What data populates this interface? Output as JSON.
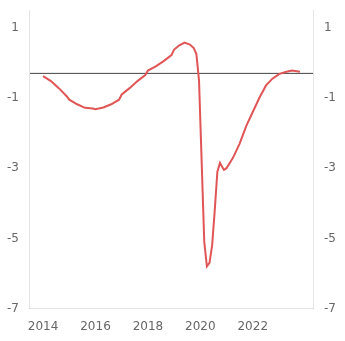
{
  "chart_data": {
    "type": "line",
    "x": [
      2014.0,
      2014.3,
      2014.6,
      2014.9,
      2015.0,
      2015.3,
      2015.6,
      2015.9,
      2016.0,
      2016.3,
      2016.6,
      2016.9,
      2017.0,
      2017.3,
      2017.6,
      2017.9,
      2018.0,
      2018.3,
      2018.6,
      2018.9,
      2019.0,
      2019.2,
      2019.4,
      2019.6,
      2019.75,
      2019.85,
      2019.95,
      2020.05,
      2020.15,
      2020.25,
      2020.35,
      2020.45,
      2020.55,
      2020.65,
      2020.75,
      2020.9,
      2021.0,
      2021.25,
      2021.5,
      2021.75,
      2022.0,
      2022.25,
      2022.5,
      2022.75,
      2023.0,
      2023.25,
      2023.5,
      2023.8
    ],
    "values": [
      -0.38,
      -0.52,
      -0.72,
      -0.95,
      -1.05,
      -1.18,
      -1.28,
      -1.3,
      -1.32,
      -1.27,
      -1.18,
      -1.05,
      -0.9,
      -0.72,
      -0.52,
      -0.35,
      -0.22,
      -0.1,
      0.05,
      0.22,
      0.38,
      0.5,
      0.58,
      0.52,
      0.42,
      0.25,
      -0.5,
      -2.8,
      -5.1,
      -5.8,
      -5.7,
      -5.2,
      -4.2,
      -3.1,
      -2.85,
      -3.05,
      -3.0,
      -2.7,
      -2.3,
      -1.8,
      -1.4,
      -1.0,
      -0.65,
      -0.45,
      -0.32,
      -0.26,
      -0.22,
      -0.25
    ],
    "color": "#e05555",
    "hline": -0.3,
    "hline_color": "#444444",
    "xlim": [
      2013.5,
      2024.3
    ],
    "xticks": [
      2014,
      2016,
      2018,
      2020,
      2022
    ],
    "ylim": [
      -7.0,
      1.5
    ],
    "yticks": [
      -7,
      -5,
      -3,
      -1,
      1
    ],
    "y2lim": [
      -7.0,
      1.5
    ],
    "y2ticks": [
      -7,
      -5,
      -3,
      -1,
      1
    ],
    "grid": false,
    "legend": false
  }
}
